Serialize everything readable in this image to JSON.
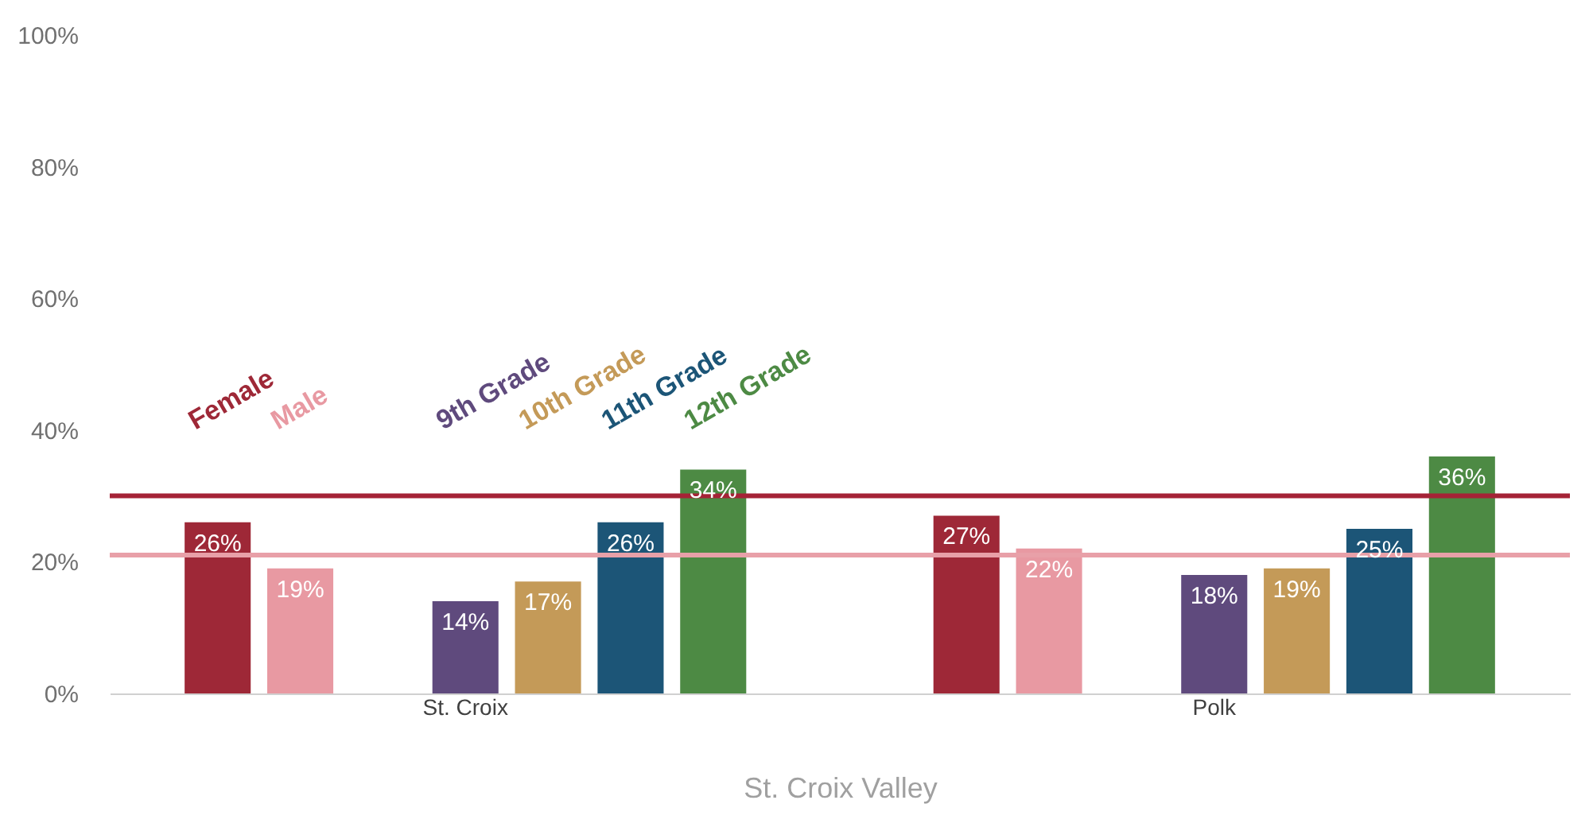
{
  "chart_data": {
    "type": "bar",
    "categories": [
      "St. Croix",
      "Polk"
    ],
    "xlabel": "St. Croix Valley",
    "series": [
      {
        "name": "Female",
        "color": "#9e2837",
        "values": [
          26,
          27
        ],
        "value_labels": [
          "26%",
          "27%"
        ]
      },
      {
        "name": "Male",
        "color": "#e899a2",
        "values": [
          19,
          22
        ],
        "value_labels": [
          "19%",
          "22%"
        ]
      },
      {
        "name": "9th Grade",
        "color": "#5f4a7d",
        "values": [
          14,
          18
        ],
        "value_labels": [
          "14%",
          "18%"
        ]
      },
      {
        "name": "10th Grade",
        "color": "#c49a58",
        "values": [
          17,
          19
        ],
        "value_labels": [
          "17%",
          "19%"
        ]
      },
      {
        "name": "11th Grade",
        "color": "#1c5577",
        "values": [
          26,
          25
        ],
        "value_labels": [
          "26%",
          "25%"
        ]
      },
      {
        "name": "12th Grade",
        "color": "#4d8a44",
        "values": [
          34,
          36
        ],
        "value_labels": [
          "34%",
          "36%"
        ]
      }
    ],
    "ylim": [
      0,
      100
    ],
    "yticks": [
      {
        "value": 0,
        "label": "0%"
      },
      {
        "value": 20,
        "label": "20%"
      },
      {
        "value": 40,
        "label": "40%"
      },
      {
        "value": 60,
        "label": "60%"
      },
      {
        "value": 80,
        "label": "80%"
      },
      {
        "value": 100,
        "label": "100%"
      }
    ],
    "ref_lines": [
      {
        "axis": "y",
        "value": 30,
        "color": "#a52336"
      },
      {
        "axis": "y",
        "value": 21,
        "color": "#e8a0a8"
      }
    ],
    "grid": false,
    "legend": false
  }
}
